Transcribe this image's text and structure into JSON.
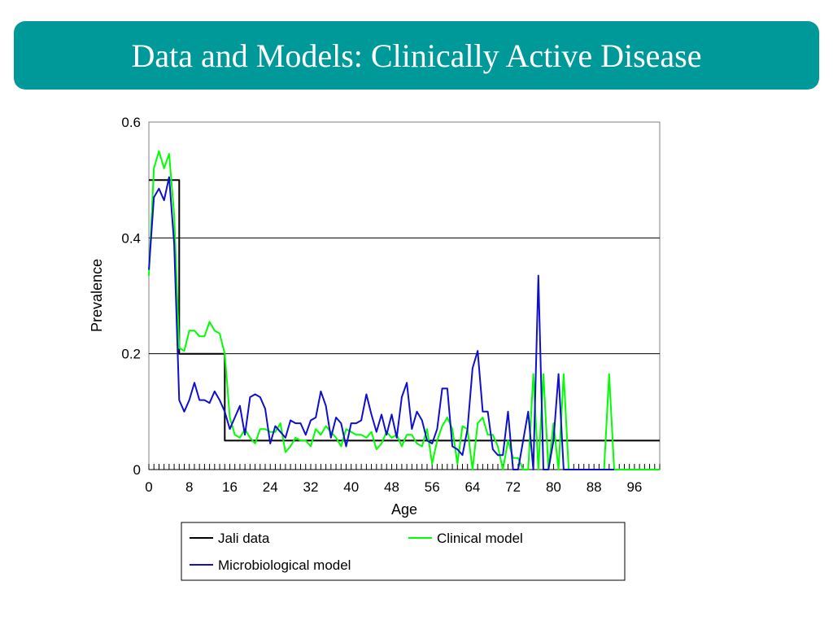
{
  "slide": {
    "title": "Data and Models: Clinically Active Disease"
  },
  "colors": {
    "title_bg": "#009999",
    "title_text": "#ffffff"
  },
  "chart_data": {
    "type": "line",
    "title": "",
    "xlabel": "Age",
    "ylabel": "Prevalence",
    "xlim": [
      0,
      101
    ],
    "ylim": [
      0,
      0.6
    ],
    "xticks": [
      0,
      8,
      16,
      24,
      32,
      40,
      48,
      56,
      64,
      72,
      80,
      88,
      96
    ],
    "xtick_labels": [
      "0",
      "8",
      "16",
      "24",
      "32",
      "40",
      "48",
      "56",
      "64",
      "72",
      "80",
      "88",
      "96"
    ],
    "yticks": [
      0,
      0.2,
      0.4,
      0.6
    ],
    "ytick_labels": [
      "0",
      "0.2",
      "0.4",
      "0.6"
    ],
    "grid": "horizontal",
    "legend_position": "bottom",
    "series": [
      {
        "name": "Jali data",
        "color": "#000000",
        "x": [
          0,
          5,
          5,
          6,
          6,
          15,
          15,
          16,
          16,
          101
        ],
        "y": [
          0.5,
          0.5,
          0.5,
          0.5,
          0.2,
          0.2,
          0.05,
          0.05,
          0.05,
          0.05
        ]
      },
      {
        "name": "Clinical model",
        "color": "#00ff00",
        "x": [
          0,
          1,
          2,
          3,
          4,
          5,
          6,
          7,
          8,
          9,
          10,
          11,
          12,
          13,
          14,
          15,
          16,
          17,
          18,
          19,
          20,
          21,
          22,
          23,
          24,
          25,
          26,
          27,
          28,
          29,
          30,
          31,
          32,
          33,
          34,
          35,
          36,
          37,
          38,
          39,
          40,
          41,
          42,
          43,
          44,
          45,
          46,
          47,
          48,
          49,
          50,
          51,
          52,
          53,
          54,
          55,
          56,
          57,
          58,
          59,
          60,
          61,
          62,
          63,
          64,
          65,
          66,
          67,
          68,
          69,
          70,
          71,
          72,
          73,
          74,
          75,
          76,
          77,
          78,
          79,
          80,
          81,
          82,
          83,
          84,
          85,
          86,
          87,
          88,
          89,
          90,
          91,
          92,
          93,
          94,
          95,
          96,
          97,
          98,
          99,
          100,
          101
        ],
        "y": [
          0.335,
          0.52,
          0.55,
          0.52,
          0.545,
          0.44,
          0.21,
          0.205,
          0.24,
          0.24,
          0.23,
          0.23,
          0.255,
          0.24,
          0.235,
          0.2,
          0.09,
          0.06,
          0.055,
          0.07,
          0.055,
          0.045,
          0.07,
          0.07,
          0.065,
          0.065,
          0.08,
          0.03,
          0.04,
          0.055,
          0.05,
          0.05,
          0.04,
          0.07,
          0.06,
          0.075,
          0.065,
          0.055,
          0.04,
          0.07,
          0.065,
          0.06,
          0.06,
          0.055,
          0.065,
          0.035,
          0.045,
          0.065,
          0.055,
          0.06,
          0.04,
          0.06,
          0.06,
          0.045,
          0.04,
          0.07,
          0.01,
          0.05,
          0.075,
          0.09,
          0.07,
          0.01,
          0.075,
          0.07,
          0.0,
          0.08,
          0.09,
          0.06,
          0.06,
          0.04,
          0.0,
          0.05,
          0.02,
          0.02,
          0.0,
          0.0,
          0.165,
          0.0,
          0.165,
          0.0,
          0.08,
          0.0,
          0.165,
          0.0,
          0.0,
          0.0,
          0.0,
          0.0,
          0.0,
          0.0,
          0.0,
          0.165,
          0.0,
          0.0,
          0.0,
          0.0,
          0.0,
          0.0,
          0.0,
          0.0,
          0.0,
          0.0
        ]
      },
      {
        "name": "Microbiological model",
        "color": "#1010cc",
        "x": [
          0,
          1,
          2,
          3,
          4,
          5,
          6,
          7,
          8,
          9,
          10,
          11,
          12,
          13,
          14,
          15,
          16,
          17,
          18,
          19,
          20,
          21,
          22,
          23,
          24,
          25,
          26,
          27,
          28,
          29,
          30,
          31,
          32,
          33,
          34,
          35,
          36,
          37,
          38,
          39,
          40,
          41,
          42,
          43,
          44,
          45,
          46,
          47,
          48,
          49,
          50,
          51,
          52,
          53,
          54,
          55,
          56,
          57,
          58,
          59,
          60,
          61,
          62,
          63,
          64,
          65,
          66,
          67,
          68,
          69,
          70,
          71,
          72,
          73,
          74,
          75,
          76,
          77,
          78,
          79,
          80,
          81,
          82,
          83,
          84,
          85,
          86,
          87,
          88,
          89,
          90,
          91,
          92
        ],
        "y": [
          0.345,
          0.47,
          0.485,
          0.465,
          0.505,
          0.39,
          0.12,
          0.1,
          0.12,
          0.15,
          0.12,
          0.12,
          0.115,
          0.135,
          0.12,
          0.1,
          0.07,
          0.09,
          0.11,
          0.06,
          0.125,
          0.13,
          0.125,
          0.105,
          0.045,
          0.075,
          0.065,
          0.055,
          0.085,
          0.08,
          0.08,
          0.06,
          0.085,
          0.09,
          0.135,
          0.11,
          0.055,
          0.09,
          0.08,
          0.04,
          0.08,
          0.08,
          0.085,
          0.13,
          0.095,
          0.065,
          0.095,
          0.06,
          0.095,
          0.055,
          0.125,
          0.15,
          0.07,
          0.1,
          0.085,
          0.05,
          0.045,
          0.07,
          0.14,
          0.14,
          0.04,
          0.035,
          0.025,
          0.07,
          0.175,
          0.205,
          0.1,
          0.1,
          0.035,
          0.025,
          0.025,
          0.1,
          0.0,
          0.0,
          0.05,
          0.1,
          0.0,
          0.335,
          0.0,
          0.0,
          0.05,
          0.165,
          0.0,
          0.0,
          0.0,
          0.0,
          0.0,
          0.0,
          0.0,
          0.0,
          0.0,
          0.0,
          0.0
        ]
      }
    ]
  }
}
